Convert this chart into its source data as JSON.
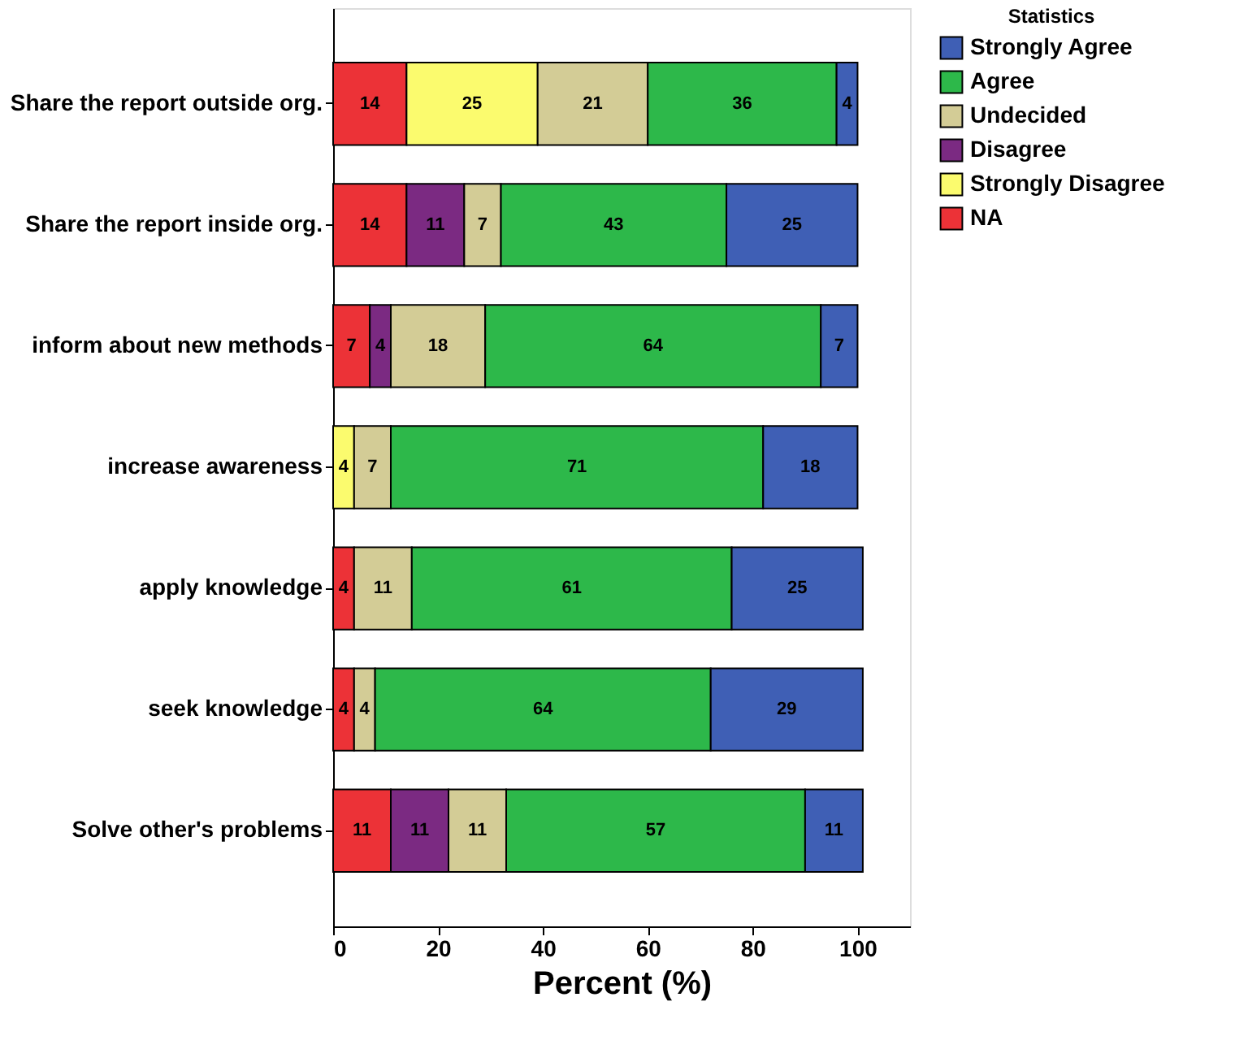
{
  "chart_data": {
    "type": "bar",
    "orientation": "horizontal",
    "stacked": true,
    "data_labels": true,
    "categories": [
      "Share the report outside org.",
      "Share the report inside org.",
      "inform about new methods",
      "increase awareness",
      "apply knowledge",
      "seek knowledge",
      "Solve other's problems"
    ],
    "series": [
      {
        "name": "NA",
        "color": "#ec3237",
        "values": [
          14,
          14,
          7,
          null,
          4,
          4,
          11
        ]
      },
      {
        "name": "Strongly Disagree",
        "color": "#fbfb6e",
        "values": [
          25,
          null,
          null,
          4,
          null,
          null,
          null
        ]
      },
      {
        "name": "Disagree",
        "color": "#7b2a82",
        "values": [
          null,
          11,
          4,
          null,
          null,
          null,
          11
        ]
      },
      {
        "name": "Undecided",
        "color": "#d3cc96",
        "values": [
          21,
          7,
          18,
          7,
          11,
          4,
          11
        ]
      },
      {
        "name": "Agree",
        "color": "#2db84a",
        "values": [
          36,
          43,
          64,
          71,
          61,
          64,
          57
        ]
      },
      {
        "name": "Strongly Agree",
        "color": "#3f5fb5",
        "values": [
          4,
          25,
          7,
          18,
          25,
          29,
          11
        ]
      }
    ],
    "xlim": [
      0,
      110
    ],
    "xticks": [
      0,
      20,
      40,
      60,
      80,
      100
    ],
    "xlabel": "Percent (%)",
    "legend_title": "Statistics",
    "legend": "top right",
    "grid": false
  }
}
